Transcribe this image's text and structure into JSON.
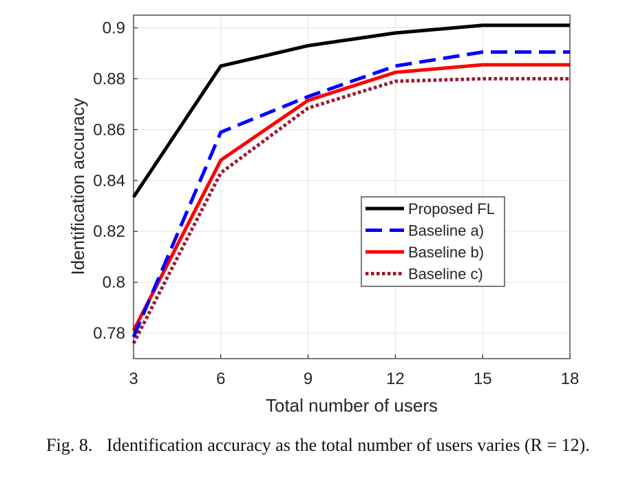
{
  "chart_data": {
    "type": "line",
    "xlabel": "Total number of users",
    "ylabel": "Identification accuracy",
    "xlim": [
      3,
      18
    ],
    "ylim": [
      0.77,
      0.905
    ],
    "xticks": [
      3,
      6,
      9,
      12,
      15,
      18
    ],
    "xtick_labels": [
      "3",
      "6",
      "9",
      "12",
      "15",
      "18"
    ],
    "yticks": [
      0.78,
      0.8,
      0.82,
      0.84,
      0.86,
      0.88,
      0.9
    ],
    "ytick_labels": [
      "0.78",
      "0.8",
      "0.82",
      "0.84",
      "0.86",
      "0.88",
      "0.9"
    ],
    "grid": true,
    "legend_position": "center-right",
    "x": [
      3,
      6,
      9,
      12,
      15,
      18
    ],
    "series": [
      {
        "name": "Proposed FL",
        "values": [
          0.8335,
          0.885,
          0.893,
          0.898,
          0.901,
          0.901
        ],
        "color": "#000000",
        "style": "solid"
      },
      {
        "name": "Baseline a)",
        "values": [
          0.7785,
          0.859,
          0.873,
          0.885,
          0.8905,
          0.8905
        ],
        "color": "#0000ff",
        "style": "dashed"
      },
      {
        "name": "Baseline b)",
        "values": [
          0.781,
          0.848,
          0.8715,
          0.8825,
          0.8855,
          0.8855
        ],
        "color": "#ff0000",
        "style": "solid"
      },
      {
        "name": "Baseline c)",
        "values": [
          0.776,
          0.843,
          0.8685,
          0.879,
          0.88,
          0.88
        ],
        "color": "#9b1b30",
        "style": "dotted"
      }
    ]
  },
  "caption": {
    "label": "Fig. 8.",
    "text": "Identification accuracy as the total number of users varies (R = 12)."
  }
}
